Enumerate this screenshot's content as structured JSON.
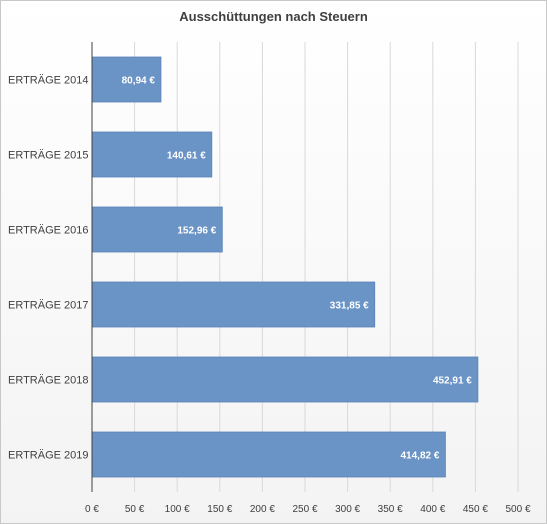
{
  "chart_data": {
    "type": "bar",
    "orientation": "horizontal",
    "title": "Ausschüttungen nach Steuern",
    "categories": [
      "ERTRÄGE 2014",
      "ERTRÄGE 2015",
      "ERTRÄGE 2016",
      "ERTRÄGE 2017",
      "ERTRÄGE 2018",
      "ERTRÄGE 2019"
    ],
    "values": [
      80.94,
      140.61,
      152.96,
      331.85,
      452.91,
      414.82
    ],
    "data_labels": [
      "80,94 €",
      "140,61 €",
      "152,96 €",
      "331,85 €",
      "452,91 €",
      "414,82 €"
    ],
    "xlim": [
      0,
      500
    ],
    "x_ticks": [
      "0 €",
      "50 €",
      "100 €",
      "150 €",
      "200 €",
      "250 €",
      "300 €",
      "350 €",
      "400 €",
      "450 €",
      "500 €"
    ],
    "grid": true,
    "legend": "none",
    "bar_color": "#6a93c6",
    "bar_border_color": "#5b83b6",
    "grid_color": "#d9d9d9"
  }
}
